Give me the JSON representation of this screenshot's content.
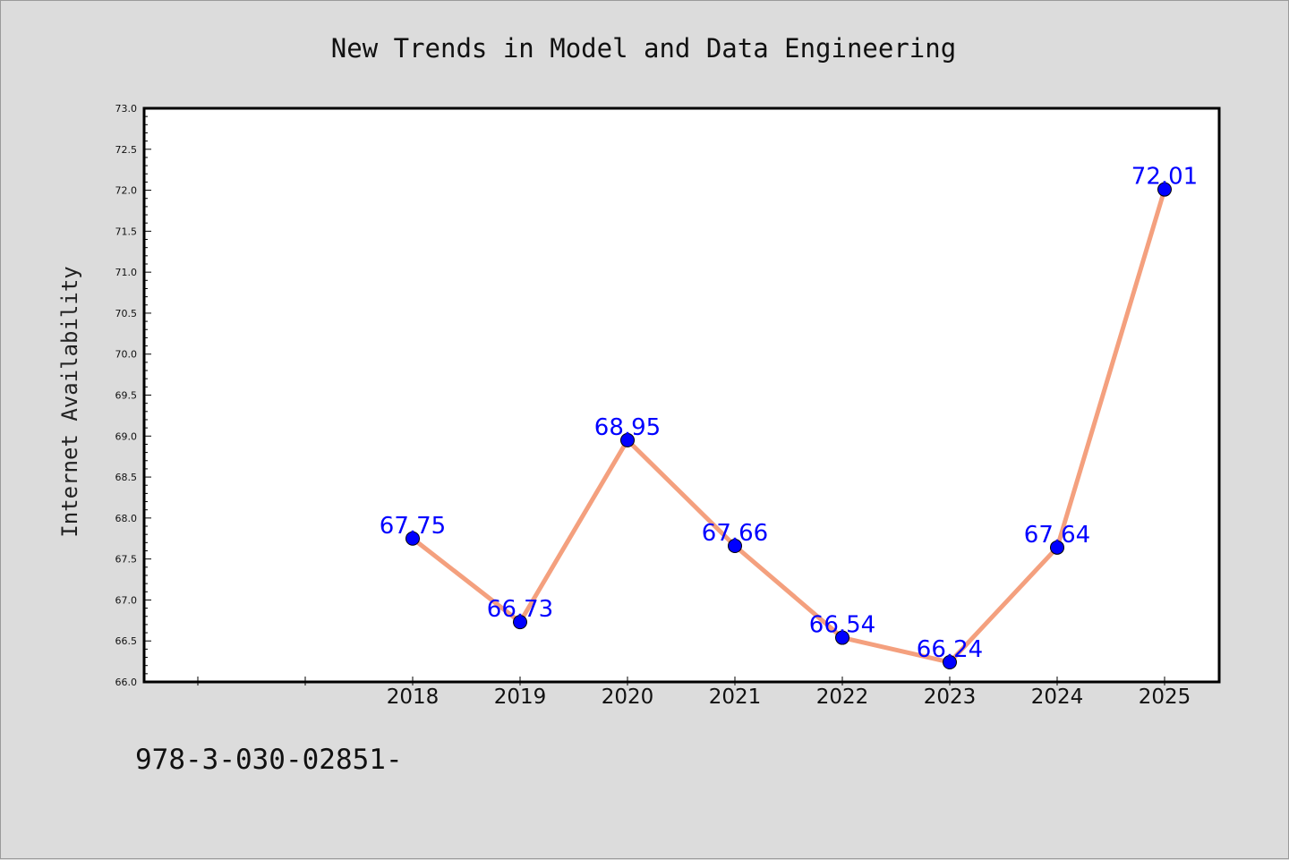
{
  "chart_data": {
    "type": "line",
    "title": "New Trends in Model and Data Engineering",
    "xlabel": "",
    "ylabel": "Internet Availability",
    "x": [
      "2018",
      "2019",
      "2020",
      "2021",
      "2022",
      "2023",
      "2024",
      "2025"
    ],
    "values": [
      67.75,
      66.73,
      68.95,
      67.66,
      66.54,
      66.24,
      67.64,
      72.01
    ],
    "data_labels": [
      "67.75",
      "66.73",
      "68.95",
      "67.66",
      "66.54",
      "66.24",
      "67.64",
      "72.01"
    ],
    "ylim": [
      66.0,
      73.0
    ],
    "yticks": [
      "66.0",
      "66.5",
      "67.0",
      "67.5",
      "68.0",
      "68.5",
      "69.0",
      "69.5",
      "70.0",
      "70.5",
      "71.0",
      "71.5",
      "72.0",
      "72.5",
      "73.0"
    ],
    "grid": false,
    "line_color": "#f4a07e",
    "marker_color": "#0000ff",
    "label_color": "#0000ff"
  },
  "footer_text": "978-3-030-02851-"
}
